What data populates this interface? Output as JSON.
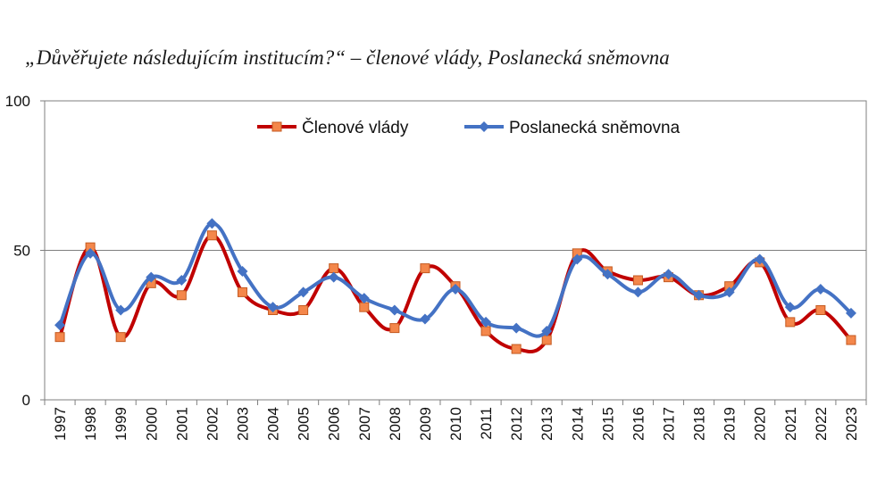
{
  "title": "„Důvěřujete následujícím institucím?“ – členové vlády, Poslanecká sněmovna",
  "colors": {
    "series1": "#c00000",
    "series1_marker": "#f4874b",
    "series2": "#4472c4",
    "axis": "#7f7f7f",
    "grid": "#7f7f7f"
  },
  "chart_data": {
    "type": "line",
    "title": "„Důvěřujete následujícím institucím?“ – členové vlády, Poslanecká sněmovna",
    "xlabel": "",
    "ylabel": "",
    "ylim": [
      0,
      100
    ],
    "y_ticks": [
      "0",
      "50",
      "100"
    ],
    "grid": "horizontal at 50",
    "legend_position": "top-center",
    "x": [
      "1997",
      "1998",
      "1999",
      "2000",
      "2001",
      "2002",
      "2003",
      "2004",
      "2005",
      "2006",
      "2007",
      "2008",
      "2009",
      "2010",
      "2011",
      "2012",
      "2013",
      "2014",
      "2015",
      "2016",
      "2017",
      "2018",
      "2019",
      "2020",
      "2021",
      "2022",
      "2023"
    ],
    "series": [
      {
        "name": "Členové vlády",
        "marker": "square",
        "values": [
          21,
          51,
          21,
          39,
          35,
          55,
          36,
          30,
          30,
          44,
          31,
          24,
          44,
          38,
          23,
          17,
          20,
          49,
          43,
          40,
          41,
          35,
          38,
          46,
          26,
          30,
          20
        ]
      },
      {
        "name": "Poslanecká sněmovna",
        "marker": "diamond",
        "values": [
          25,
          49,
          30,
          41,
          40,
          59,
          43,
          31,
          36,
          41,
          34,
          30,
          27,
          37,
          26,
          24,
          23,
          47,
          42,
          36,
          42,
          35,
          36,
          47,
          31,
          37,
          29
        ]
      }
    ]
  }
}
